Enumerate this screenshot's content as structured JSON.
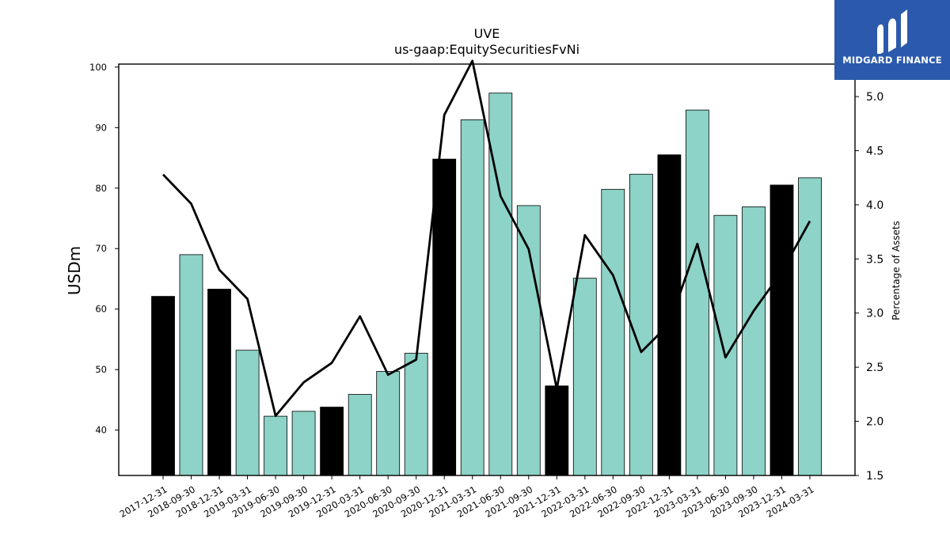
{
  "chart_data": {
    "type": "bar",
    "title": "UVE",
    "subtitle": "us-gaap:EquitySecuritiesFvNi",
    "ylabel": "USDm",
    "y2label": "Percentage of Assets",
    "ylim": [
      32.5,
      100.5
    ],
    "y2lim": [
      1.5,
      5.3
    ],
    "yticks": [
      40,
      50,
      60,
      70,
      80,
      90,
      100
    ],
    "y2ticks": [
      1.5,
      2.0,
      2.5,
      3.0,
      3.5,
      4.0,
      4.5,
      5.0
    ],
    "categories": [
      "2017-12-31",
      "2018-09-30",
      "2018-12-31",
      "2019-03-31",
      "2019-06-30",
      "2019-09-30",
      "2019-12-31",
      "2020-03-31",
      "2020-06-30",
      "2020-09-30",
      "2020-12-31",
      "2021-03-31",
      "2021-06-30",
      "2021-09-30",
      "2021-12-31",
      "2022-03-31",
      "2022-06-30",
      "2022-09-30",
      "2022-12-31",
      "2023-03-31",
      "2023-06-30",
      "2023-09-30",
      "2023-12-31",
      "2024-03-31"
    ],
    "series": [
      {
        "type": "bar",
        "values": [
          62.1,
          69.0,
          63.3,
          53.2,
          42.3,
          43.1,
          43.8,
          45.9,
          49.7,
          52.7,
          84.8,
          91.3,
          95.7,
          77.1,
          47.3,
          65.1,
          79.8,
          82.3,
          85.5,
          92.9,
          75.5,
          76.9,
          80.5,
          81.7
        ],
        "fiscal_year_end": [
          true,
          false,
          true,
          false,
          false,
          false,
          true,
          false,
          false,
          false,
          true,
          false,
          false,
          false,
          true,
          false,
          false,
          false,
          true,
          false,
          false,
          false,
          true,
          false
        ]
      },
      {
        "type": "line",
        "axis": "right",
        "values": [
          4.28,
          4.01,
          3.4,
          3.13,
          2.05,
          2.36,
          2.54,
          2.97,
          2.43,
          2.57,
          4.83,
          5.33,
          4.08,
          3.59,
          2.3,
          3.72,
          3.35,
          2.64,
          2.9,
          3.64,
          2.59,
          3.02,
          3.38,
          3.85
        ]
      }
    ],
    "colors": {
      "bar": "#8dd3c7",
      "bar_fiscal": "#000000",
      "line": "#000000"
    }
  },
  "logo": {
    "text": "MIDGARD FINANCE",
    "background": "#2b5aad"
  }
}
